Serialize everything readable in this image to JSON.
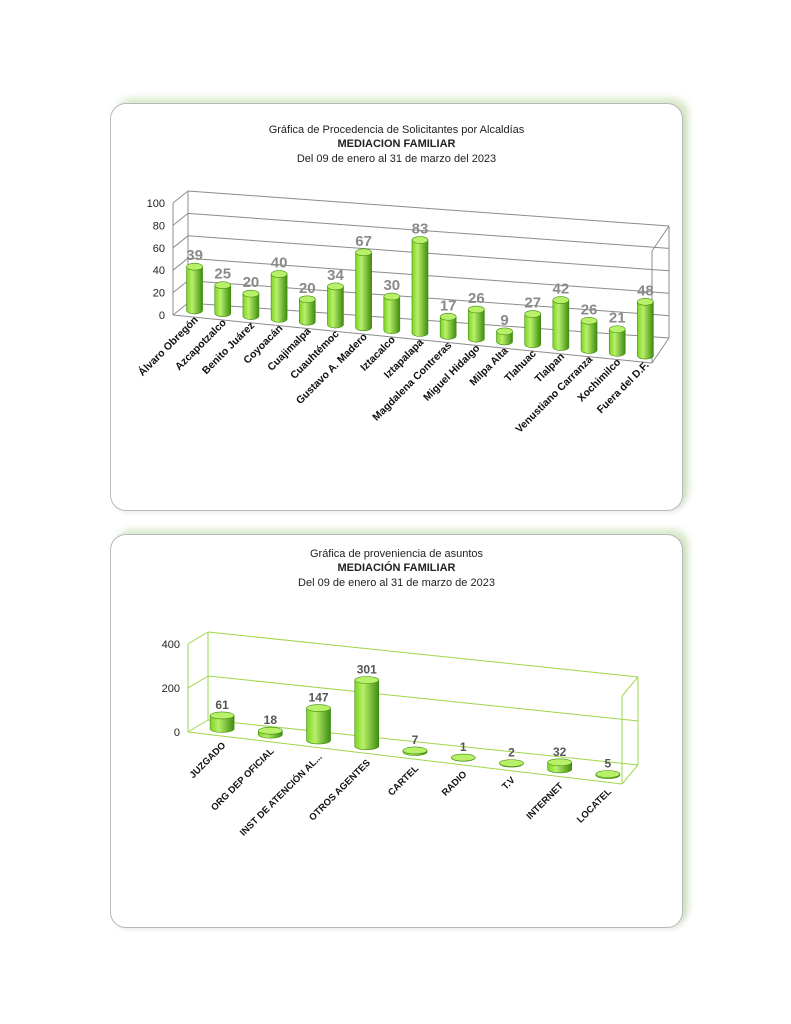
{
  "colors": {
    "bar_light": "#b8f06a",
    "bar_mid": "#7ed321",
    "bar_dark": "#3f8c10",
    "frame1": "#8c8c8c",
    "frame2": "#9fd64a"
  },
  "chart_data": [
    {
      "type": "bar",
      "title": "Gráfica de Procedencia de Solicitantes por Alcaldías",
      "subtitle": "MEDIACION FAMILIAR",
      "period": "Del  09 de enero  al  31 de marzo  del  2023",
      "categories": [
        "Álvaro Obregón",
        "Azcapotzalco",
        "Benito Juárez",
        "Coyoacán",
        "Cuajimalpa",
        "Cuauhtémoc",
        "Gustavo A. Madero",
        "Iztacalco",
        "Iztapalapa",
        "Magdalena Contreras",
        "Miguel Hidalgo",
        "Milpa Alta",
        "Tlahuac",
        "Tlalpan",
        "Venustiano Carranza",
        "Xochimilco",
        "Fuera del D.F."
      ],
      "values": [
        39,
        25,
        20,
        40,
        20,
        34,
        67,
        30,
        83,
        17,
        26,
        9,
        27,
        42,
        26,
        21,
        48
      ],
      "yticks": [
        "0",
        "20",
        "40",
        "60",
        "80",
        "100"
      ],
      "ylim": [
        0,
        100
      ],
      "bar_shape": "cylinder-3d"
    },
    {
      "type": "bar",
      "title": "Gráfica de proveniencia de asuntos",
      "subtitle": "MEDIACIÓN FAMILIAR",
      "period": "Del  09 de enero al  31 de marzo  de  2023",
      "categories": [
        "JUZGADO",
        "ORG DEP OFICIAL",
        "INST DE ATENCIÓN AL...",
        "OTROS AGENTES",
        "CARTEL",
        "RADIO",
        "T.V",
        "INTERNET",
        "LOCATEL"
      ],
      "values": [
        61,
        18,
        147,
        301,
        7,
        1,
        2,
        32,
        5
      ],
      "yticks": [
        "0",
        "200",
        "400"
      ],
      "ylim": [
        0,
        400
      ],
      "bar_shape": "cylinder-3d"
    }
  ]
}
